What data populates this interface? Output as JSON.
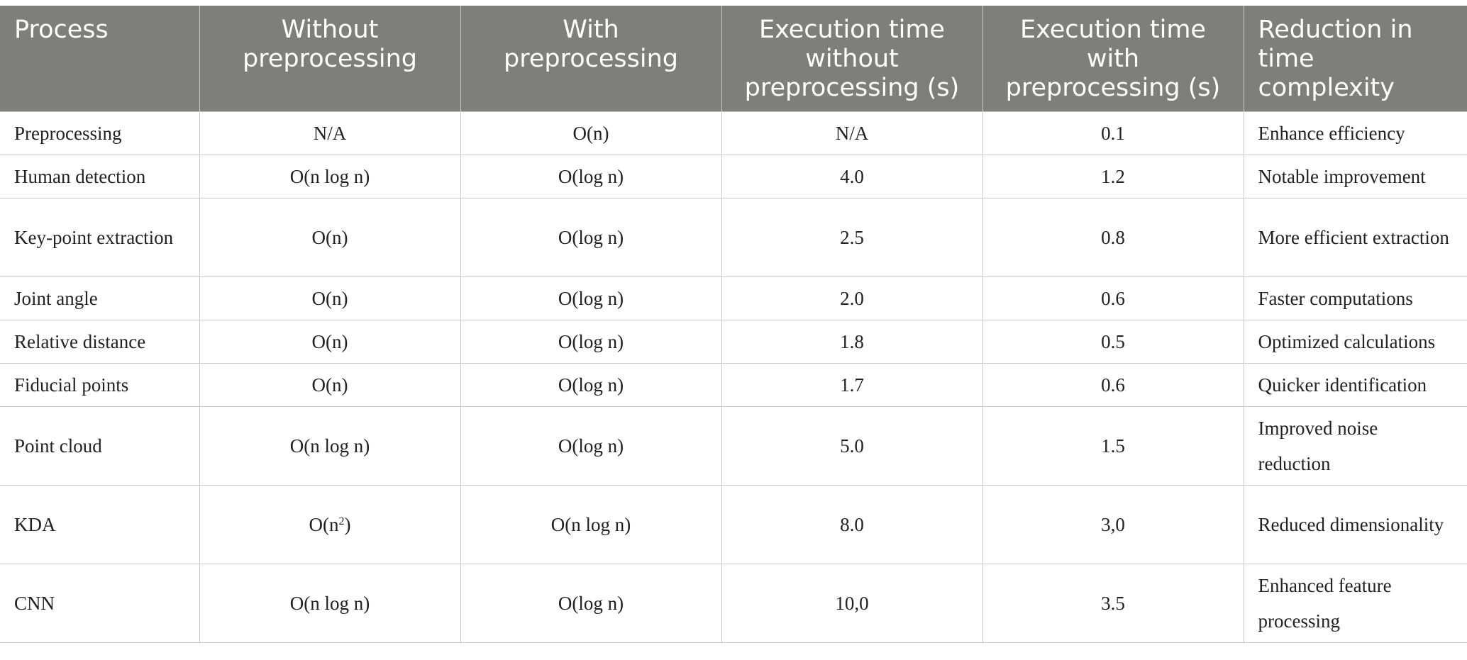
{
  "table": {
    "headers": [
      "Process",
      "Without preprocessing",
      "With preprocessing",
      "Execution time without preprocessing (s)",
      "Execution time with preprocessing (s)",
      "Reduction in time complexity"
    ],
    "rows": [
      [
        "Preprocessing",
        "N/A",
        "O(n)",
        "N/A",
        "0.1",
        "Enhance efficiency"
      ],
      [
        "Human detection",
        "O(n log n)",
        "O(log n)",
        "4.0",
        "1.2",
        "Notable improvement"
      ],
      [
        "Key-point extraction",
        "O(n)",
        "O(log n)",
        "2.5",
        "0.8",
        "More efficient extraction"
      ],
      [
        "Joint angle",
        "O(n)",
        "O(log n)",
        "2.0",
        "0.6",
        "Faster computations"
      ],
      [
        "Relative distance",
        "O(n)",
        "O(log n)",
        "1.8",
        "0.5",
        "Optimized calculations"
      ],
      [
        "Fiducial points",
        "O(n)",
        "O(log n)",
        "1.7",
        "0.6",
        "Quicker identification"
      ],
      [
        "Point cloud",
        "O(n log n)",
        "O(log n)",
        "5.0",
        "1.5",
        "Improved noise reduction"
      ],
      [
        "KDA",
        "O(n2)",
        "O(n log n)",
        "8.0",
        "3,0",
        "Reduced dimensionality"
      ],
      [
        "CNN",
        "O(n log n)",
        "O(log n)",
        "10,0",
        "3.5",
        "Enhanced feature processing"
      ]
    ]
  }
}
